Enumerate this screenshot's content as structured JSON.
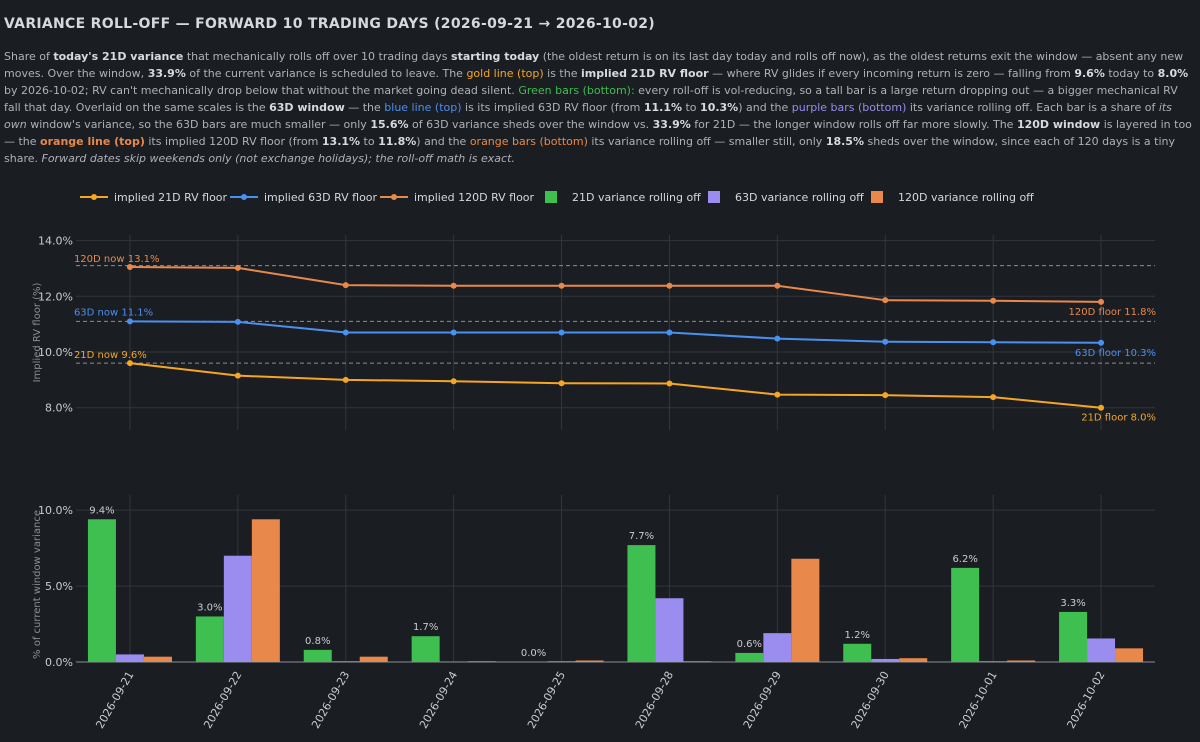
{
  "title": "VARIANCE ROLL-OFF — FORWARD 10 TRADING DAYS (2026-09-21 → 2026-10-02)",
  "description": {
    "s1": "Share of ",
    "b1": "today's 21D variance",
    "s2": " that mechanically rolls off over 10 trading days ",
    "b2": "starting today",
    "s3": " (the oldest return is on its last day today and rolls off now), as the oldest returns exit the window — absent any new moves. Over the window, ",
    "b3": "33.9%",
    "s4": " of the current variance is scheduled to leave. The ",
    "gold_line": "gold line (top)",
    "s5": " is the ",
    "b4": "implied 21D RV floor",
    "s6": " — where RV glides if every incoming return is zero — falling from ",
    "b5": "9.6%",
    "s7": " today to ",
    "b6": "8.0%",
    "s8": " by 2026-10-02; RV can't mechanically drop below that without the market going dead silent. ",
    "green_bars": "Green bars (bottom):",
    "s9": " every roll-off is vol-reducing, so a tall bar is a large return dropping out — a bigger mechanical RV fall that day. Overlaid on the same scales is the ",
    "b7": "63D window",
    "s10": " — the ",
    "blue_line": "blue line (top)",
    "s11": " is its implied 63D RV floor (from ",
    "b8": "11.1%",
    "s12": " to ",
    "b9": "10.3%",
    "s13": ") and the ",
    "purple_bars": "purple bars (bottom)",
    "s14": " its variance rolling off. Each bar is a share of ",
    "i1": "its own",
    "s15": " window's variance, so the 63D bars are much smaller — only ",
    "b10": "15.6%",
    "s16": " of 63D variance sheds over the window vs. ",
    "b11": "33.9%",
    "s17": " for 21D — the longer window rolls off far more slowly. The ",
    "b12": "120D window",
    "s18": " is layered in too — the ",
    "orange_line": "orange line (top)",
    "s19": " its implied 120D RV floor (from ",
    "b13": "13.1%",
    "s20": " to ",
    "b14": "11.8%",
    "s21": ") and the ",
    "orange_bars": "orange bars (bottom)",
    "s22": " its variance rolling off — smaller still, only ",
    "b15": "18.5%",
    "s23": " sheds over the window, since each of 120 days is a tiny share. ",
    "i2": "Forward dates skip weekends only (not exchange holidays); the roll-off math is exact."
  },
  "colors": {
    "rv21": "#f5a623",
    "rv63": "#4a90f0",
    "rv120": "#e8894b",
    "bar21": "#3fbf4f",
    "bar63": "#9b8cf0",
    "bar120": "#e8894b"
  },
  "chart_data": [
    {
      "type": "line",
      "ylabel": "Implied RV floor (%)",
      "ylim": [
        7.2,
        14.2
      ],
      "yticks": [
        "8.0%",
        "10.0%",
        "12.0%",
        "14.0%"
      ],
      "ytick_values": [
        8,
        10,
        12,
        14
      ],
      "x": [
        "2026-09-21",
        "2026-09-22",
        "2026-09-23",
        "2026-09-24",
        "2026-09-25",
        "2026-09-28",
        "2026-09-29",
        "2026-09-30",
        "2026-10-01",
        "2026-10-02"
      ],
      "series": [
        {
          "name": "implied 21D RV floor",
          "values": [
            9.6,
            9.15,
            9.0,
            8.95,
            8.88,
            8.87,
            8.47,
            8.45,
            8.38,
            8.0
          ]
        },
        {
          "name": "implied 63D RV floor",
          "values": [
            11.1,
            11.08,
            10.7,
            10.7,
            10.7,
            10.7,
            10.48,
            10.37,
            10.35,
            10.33
          ]
        },
        {
          "name": "implied 120D RV floor",
          "values": [
            13.05,
            13.02,
            12.4,
            12.38,
            12.38,
            12.38,
            12.38,
            11.86,
            11.84,
            11.8
          ]
        }
      ],
      "annotations": {
        "now120": "120D now 13.1%",
        "now63": "63D now 11.1%",
        "now21": "21D now 9.6%",
        "floor120": "120D floor 11.8%",
        "floor63": "63D floor 10.3%",
        "floor21": "21D floor 8.0%"
      },
      "reference_lines": [
        13.1,
        11.1,
        9.6
      ],
      "legend": "top"
    },
    {
      "type": "bar",
      "ylabel": "% of current window variance",
      "ylim": [
        0,
        11
      ],
      "yticks": [
        "0.0%",
        "5.0%",
        "10.0%"
      ],
      "ytick_values": [
        0,
        5,
        10
      ],
      "categories": [
        "2026-09-21",
        "2026-09-22",
        "2026-09-23",
        "2026-09-24",
        "2026-09-25",
        "2026-09-28",
        "2026-09-29",
        "2026-09-30",
        "2026-10-01",
        "2026-10-02"
      ],
      "series": [
        {
          "name": "21D variance rolling off",
          "values": [
            9.4,
            3.0,
            0.8,
            1.7,
            0.0,
            7.7,
            0.6,
            1.2,
            6.2,
            3.3
          ],
          "labels": [
            "9.4%",
            "3.0%",
            "0.8%",
            "1.7%",
            "0.0%",
            "7.7%",
            "0.6%",
            "1.2%",
            "6.2%",
            "3.3%"
          ]
        },
        {
          "name": "63D variance rolling off",
          "values": [
            0.5,
            7.0,
            0.05,
            0.03,
            0.05,
            4.2,
            1.9,
            0.2,
            0.05,
            1.55
          ]
        },
        {
          "name": "120D variance rolling off",
          "values": [
            0.35,
            9.4,
            0.35,
            0.05,
            0.1,
            0.05,
            6.8,
            0.25,
            0.1,
            0.9
          ]
        }
      ]
    }
  ]
}
